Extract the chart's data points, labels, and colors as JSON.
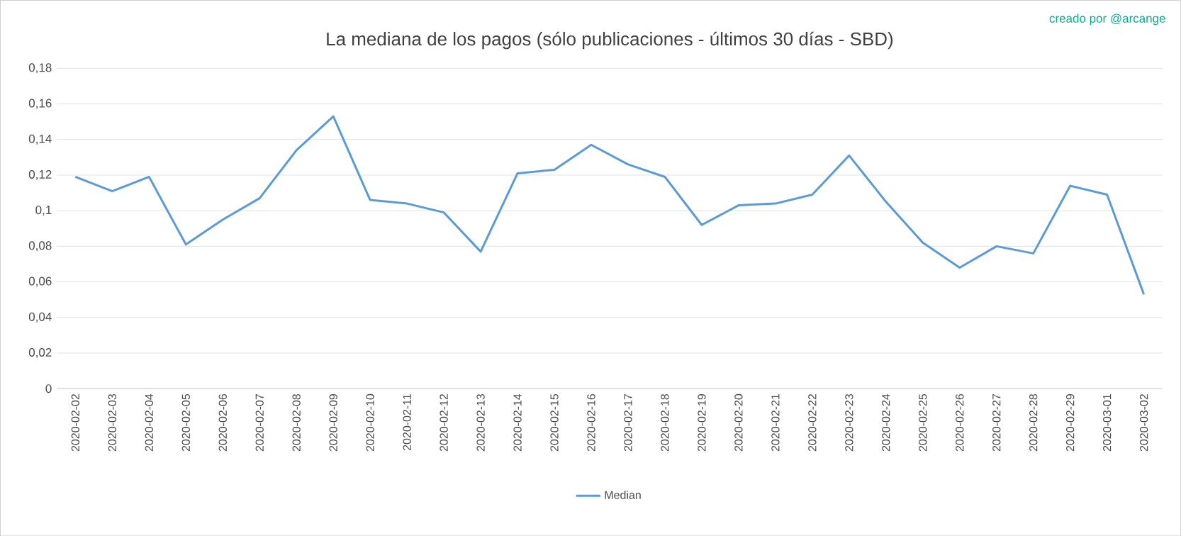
{
  "chart_data": {
    "type": "line",
    "title": "La mediana de los pagos (sólo publicaciones - últimos 30 días - SBD)",
    "annotations": [
      "creado por @arcange"
    ],
    "categories": [
      "2020-02-02",
      "2020-02-03",
      "2020-02-04",
      "2020-02-05",
      "2020-02-06",
      "2020-02-07",
      "2020-02-08",
      "2020-02-09",
      "2020-02-10",
      "2020-02-11",
      "2020-02-12",
      "2020-02-13",
      "2020-02-14",
      "2020-02-15",
      "2020-02-16",
      "2020-02-17",
      "2020-02-18",
      "2020-02-19",
      "2020-02-20",
      "2020-02-21",
      "2020-02-22",
      "2020-02-23",
      "2020-02-24",
      "2020-02-25",
      "2020-02-26",
      "2020-02-27",
      "2020-02-28",
      "2020-02-29",
      "2020-03-01",
      "2020-03-02"
    ],
    "series": [
      {
        "name": "Median",
        "color": "#5b9bd5",
        "values": [
          0.119,
          0.111,
          0.119,
          0.081,
          0.095,
          0.107,
          0.134,
          0.153,
          0.106,
          0.104,
          0.099,
          0.077,
          0.121,
          0.123,
          0.137,
          0.126,
          0.119,
          0.092,
          0.103,
          0.104,
          0.109,
          0.131,
          0.105,
          0.082,
          0.068,
          0.08,
          0.076,
          0.114,
          0.109,
          0.053
        ]
      }
    ],
    "ylim": [
      0,
      0.18
    ],
    "yticks": [
      {
        "value": 0,
        "label": "0"
      },
      {
        "value": 0.02,
        "label": "0,02"
      },
      {
        "value": 0.04,
        "label": "0,04"
      },
      {
        "value": 0.06,
        "label": "0,06"
      },
      {
        "value": 0.08,
        "label": "0,08"
      },
      {
        "value": 0.1,
        "label": "0,1"
      },
      {
        "value": 0.12,
        "label": "0,12"
      },
      {
        "value": 0.14,
        "label": "0,14"
      },
      {
        "value": 0.16,
        "label": "0,16"
      },
      {
        "value": 0.18,
        "label": "0,18"
      }
    ],
    "grid": "y",
    "legend": "bottom",
    "marker": "none",
    "line_style": "solid"
  }
}
